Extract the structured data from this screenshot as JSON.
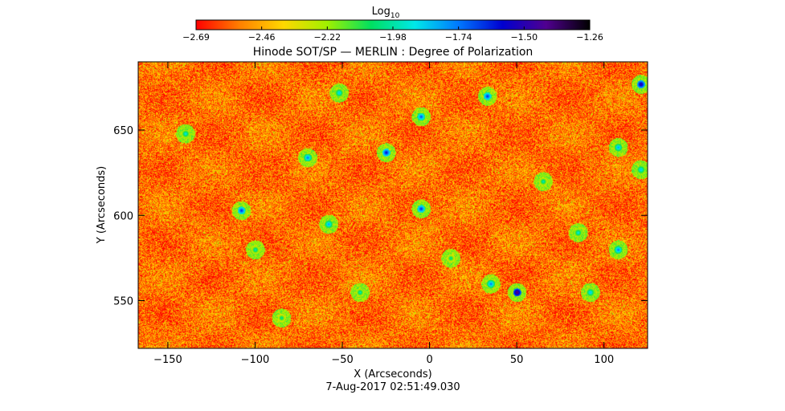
{
  "chart_data": {
    "type": "heatmap",
    "title": "Hinode SOT/SP — MERLIN : Degree of Polarization",
    "xlabel": "X (Arcseconds)",
    "ylabel": "Y (Arcseconds)",
    "xlim": [
      -167,
      125
    ],
    "ylim": [
      522,
      690
    ],
    "x_ticks": [
      -150,
      -100,
      -50,
      0,
      50,
      100
    ],
    "y_ticks": [
      550,
      600,
      650
    ],
    "x_tick_labels": [
      "−150",
      "−100",
      "−50",
      "0",
      "50",
      "100"
    ],
    "y_tick_labels": [
      "550",
      "600",
      "650"
    ],
    "colorbar": {
      "label_base": "Log",
      "label_sub": "10",
      "range": [
        -2.69,
        -1.26
      ],
      "tick_labels": [
        "−2.69",
        "−2.46",
        "−2.22",
        "−1.98",
        "−1.74",
        "−1.50",
        "−1.26"
      ],
      "colormap": [
        "#ff0000",
        "#ff8000",
        "#ffd800",
        "#a0f000",
        "#00e060",
        "#00e8e8",
        "#0078ff",
        "#0000d0",
        "#500090",
        "#000000"
      ]
    },
    "background_level": -2.55,
    "hotspots": [
      {
        "x": -140,
        "y": 648,
        "v": -1.85
      },
      {
        "x": -108,
        "y": 603,
        "v": -1.6
      },
      {
        "x": -100,
        "y": 580,
        "v": -1.9
      },
      {
        "x": -85,
        "y": 540,
        "v": -1.95
      },
      {
        "x": -70,
        "y": 634,
        "v": -1.7
      },
      {
        "x": -58,
        "y": 595,
        "v": -1.75
      },
      {
        "x": -52,
        "y": 672,
        "v": -1.8
      },
      {
        "x": -40,
        "y": 555,
        "v": -1.9
      },
      {
        "x": -25,
        "y": 637,
        "v": -1.55
      },
      {
        "x": -5,
        "y": 604,
        "v": -1.6
      },
      {
        "x": -5,
        "y": 658,
        "v": -1.65
      },
      {
        "x": 12,
        "y": 575,
        "v": -1.95
      },
      {
        "x": 33,
        "y": 670,
        "v": -1.6
      },
      {
        "x": 35,
        "y": 560,
        "v": -1.7
      },
      {
        "x": 50,
        "y": 555,
        "v": -1.35
      },
      {
        "x": 65,
        "y": 620,
        "v": -1.9
      },
      {
        "x": 85,
        "y": 590,
        "v": -1.85
      },
      {
        "x": 92,
        "y": 555,
        "v": -1.8
      },
      {
        "x": 108,
        "y": 640,
        "v": -1.75
      },
      {
        "x": 108,
        "y": 580,
        "v": -1.7
      },
      {
        "x": 121,
        "y": 677,
        "v": -1.45
      },
      {
        "x": 121,
        "y": 627,
        "v": -1.8
      }
    ],
    "timestamp": "7-Aug-2017 02:51:49.030"
  }
}
